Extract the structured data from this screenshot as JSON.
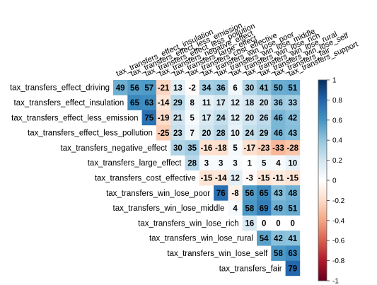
{
  "chart_data": {
    "type": "heatmap",
    "title": "",
    "row_labels": [
      "tax_transfers_effect_driving",
      "tax_transfers_effect_insulation",
      "tax_transfers_effect_less_emission",
      "tax_transfers_effect_less_pollution",
      "tax_transfers_negative_effect",
      "tax_transfers_large_effect",
      "tax_transfers_cost_effective",
      "tax_transfers_win_lose_poor",
      "tax_transfers_win_lose_middle",
      "tax_transfers_win_lose_rich",
      "tax_transfers_win_lose_rural",
      "tax_transfers_win_lose_self",
      "tax_transfers_fair"
    ],
    "col_labels": [
      "tax_transfers_effect_insulation",
      "tax_transfers_effect_less_emission",
      "tax_transfers_effect_less_pollution",
      "tax_transfers_negative_effect",
      "tax_transfers_large_effect",
      "tax_transfers_cost_effective",
      "tax_transfers_win_lose_poor",
      "tax_transfers_win_lose_middle",
      "tax_transfers_win_lose_rich",
      "tax_transfers_win_lose_rural",
      "tax_transfers_win_lose_self",
      "tax_transfers_fair",
      "tax_transfers_support"
    ],
    "values": [
      [
        49,
        56,
        57,
        -21,
        13,
        -2,
        34,
        36,
        6,
        30,
        41,
        50,
        51
      ],
      [
        null,
        65,
        63,
        -14,
        29,
        8,
        11,
        17,
        12,
        18,
        20,
        36,
        33
      ],
      [
        null,
        null,
        75,
        -19,
        21,
        5,
        17,
        24,
        12,
        20,
        26,
        46,
        42
      ],
      [
        null,
        null,
        null,
        -25,
        23,
        7,
        20,
        28,
        10,
        24,
        29,
        46,
        43
      ],
      [
        null,
        null,
        null,
        null,
        30,
        35,
        -16,
        -18,
        5,
        -17,
        -23,
        -33,
        -28
      ],
      [
        null,
        null,
        null,
        null,
        null,
        28,
        3,
        3,
        3,
        1,
        5,
        4,
        10
      ],
      [
        null,
        null,
        null,
        null,
        null,
        null,
        -15,
        -14,
        12,
        -3,
        -15,
        -11,
        -15
      ],
      [
        null,
        null,
        null,
        null,
        null,
        null,
        null,
        76,
        -8,
        56,
        65,
        43,
        48
      ],
      [
        null,
        null,
        null,
        null,
        null,
        null,
        null,
        null,
        4,
        58,
        69,
        49,
        51
      ],
      [
        null,
        null,
        null,
        null,
        null,
        null,
        null,
        null,
        null,
        16,
        0,
        0,
        0
      ],
      [
        null,
        null,
        null,
        null,
        null,
        null,
        null,
        null,
        null,
        null,
        54,
        42,
        41
      ],
      [
        null,
        null,
        null,
        null,
        null,
        null,
        null,
        null,
        null,
        null,
        null,
        58,
        63
      ],
      [
        null,
        null,
        null,
        null,
        null,
        null,
        null,
        null,
        null,
        null,
        null,
        null,
        79
      ]
    ],
    "value_scale": 100,
    "colorbar": {
      "range": [
        -1,
        1
      ],
      "ticks": [
        "1",
        "0.8",
        "0.6",
        "0.4",
        "0.2",
        "0",
        "-0.2",
        "-0.4",
        "-0.6",
        "-0.8",
        "-1"
      ],
      "position": "right"
    },
    "colors": {
      "negative": "#67001F",
      "neutral": "#FFFFFF",
      "positive": "#053061"
    }
  }
}
